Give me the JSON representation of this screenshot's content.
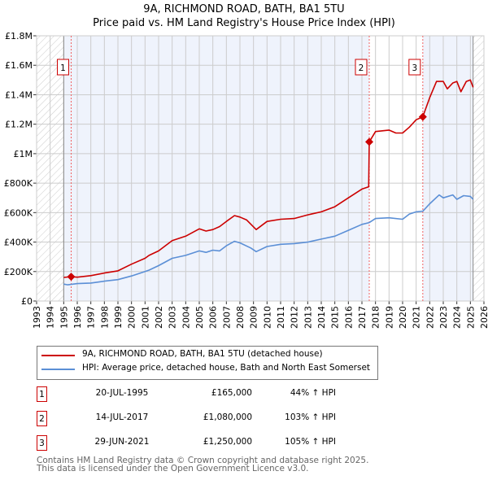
{
  "chart_data": {
    "type": "line",
    "title": "9A, RICHMOND ROAD, BATH, BA1 5TU",
    "subtitle": "Price paid vs. HM Land Registry's House Price Index (HPI)",
    "xlim": [
      1993,
      2026
    ],
    "ylim": [
      0,
      1800000
    ],
    "x_ticks": [
      "1993",
      "1994",
      "1995",
      "1996",
      "1997",
      "1998",
      "1999",
      "2000",
      "2001",
      "2002",
      "2003",
      "2004",
      "2005",
      "2006",
      "2007",
      "2008",
      "2009",
      "2010",
      "2011",
      "2012",
      "2013",
      "2014",
      "2015",
      "2016",
      "2017",
      "2018",
      "2019",
      "2020",
      "2021",
      "2022",
      "2023",
      "2024",
      "2025",
      "2026"
    ],
    "y_ticks": [
      {
        "v": 0,
        "label": "£0"
      },
      {
        "v": 200000,
        "label": "£200K"
      },
      {
        "v": 400000,
        "label": "£400K"
      },
      {
        "v": 600000,
        "label": "£600K"
      },
      {
        "v": 800000,
        "label": "£800K"
      },
      {
        "v": 1000000,
        "label": "£1M"
      },
      {
        "v": 1200000,
        "label": "£1.2M"
      },
      {
        "v": 1400000,
        "label": "£1.4M"
      },
      {
        "v": 1600000,
        "label": "£1.6M"
      },
      {
        "v": 1800000,
        "label": "£1.8M"
      }
    ],
    "grid": true,
    "data_start": 1995.0,
    "data_end": 2025.2,
    "series": [
      {
        "name": "9A, RICHMOND ROAD, BATH, BA1 5TU (detached house)",
        "color": "#cc0000",
        "x": [
          1995.0,
          1995.55,
          1996,
          1997,
          1998,
          1999,
          2000,
          2001,
          2001.3,
          2002,
          2003,
          2004,
          2005,
          2005.5,
          2006,
          2006.5,
          2007,
          2007.6,
          2008,
          2008.5,
          2009.2,
          2010,
          2011,
          2012,
          2013,
          2014,
          2015,
          2016,
          2017,
          2017.5,
          2017.54,
          2018,
          2019,
          2019.5,
          2020,
          2020.5,
          2021,
          2021.49,
          2022,
          2022.5,
          2023,
          2023.3,
          2023.7,
          2024,
          2024.3,
          2024.7,
          2025,
          2025.2
        ],
        "y": [
          160000,
          165000,
          162000,
          172000,
          190000,
          205000,
          250000,
          290000,
          310000,
          340000,
          410000,
          440000,
          490000,
          475000,
          485000,
          505000,
          540000,
          580000,
          570000,
          550000,
          485000,
          540000,
          555000,
          560000,
          585000,
          605000,
          640000,
          700000,
          760000,
          775000,
          1080000,
          1150000,
          1160000,
          1140000,
          1140000,
          1180000,
          1230000,
          1250000,
          1380000,
          1490000,
          1490000,
          1440000,
          1480000,
          1490000,
          1420000,
          1490000,
          1500000,
          1450000
        ]
      },
      {
        "name": "HPI: Average price, detached house, Bath and North East Somerset",
        "color": "#5b8fd6",
        "x": [
          1995.0,
          1995.3,
          1996,
          1997,
          1998,
          1999,
          2000,
          2001,
          2001.3,
          2002,
          2003,
          2004,
          2005,
          2005.5,
          2006,
          2006.5,
          2007,
          2007.6,
          2008,
          2008.8,
          2009.2,
          2010,
          2011,
          2012,
          2013,
          2014,
          2015,
          2016,
          2017,
          2017.54,
          2018,
          2019,
          2020,
          2020.5,
          2021,
          2021.5,
          2022,
          2022.7,
          2023,
          2023.7,
          2024,
          2024.5,
          2025,
          2025.2
        ],
        "y": [
          115000,
          110000,
          118000,
          122000,
          135000,
          145000,
          170000,
          200000,
          210000,
          240000,
          290000,
          310000,
          340000,
          330000,
          345000,
          340000,
          375000,
          405000,
          395000,
          360000,
          335000,
          370000,
          385000,
          390000,
          400000,
          420000,
          440000,
          480000,
          520000,
          532000,
          560000,
          565000,
          555000,
          590000,
          605000,
          610000,
          660000,
          720000,
          700000,
          720000,
          690000,
          715000,
          710000,
          690000
        ]
      }
    ],
    "sales": [
      {
        "id": "1",
        "x": 1995.55,
        "price": 165000
      },
      {
        "id": "2",
        "x": 2017.54,
        "price": 1080000
      },
      {
        "id": "3",
        "x": 2021.49,
        "price": 1250000
      }
    ]
  },
  "title": "9A, RICHMOND ROAD, BATH, BA1 5TU",
  "subtitle": "Price paid vs. HM Land Registry's House Price Index (HPI)",
  "legend": [
    {
      "label": "9A, RICHMOND ROAD, BATH, BA1 5TU (detached house)",
      "color": "#cc0000"
    },
    {
      "label": "HPI: Average price, detached house, Bath and North East Somerset",
      "color": "#5b8fd6"
    }
  ],
  "transactions": [
    {
      "id": "1",
      "date": "20-JUL-1995",
      "price": "£165,000",
      "hpi": "44% ↑ HPI"
    },
    {
      "id": "2",
      "date": "14-JUL-2017",
      "price": "£1,080,000",
      "hpi": "103% ↑ HPI"
    },
    {
      "id": "3",
      "date": "29-JUN-2021",
      "price": "£1,250,000",
      "hpi": "105% ↑ HPI"
    }
  ],
  "footer": {
    "line1": "Contains HM Land Registry data © Crown copyright and database right 2025.",
    "line2": "This data is licensed under the Open Government Licence v3.0."
  }
}
